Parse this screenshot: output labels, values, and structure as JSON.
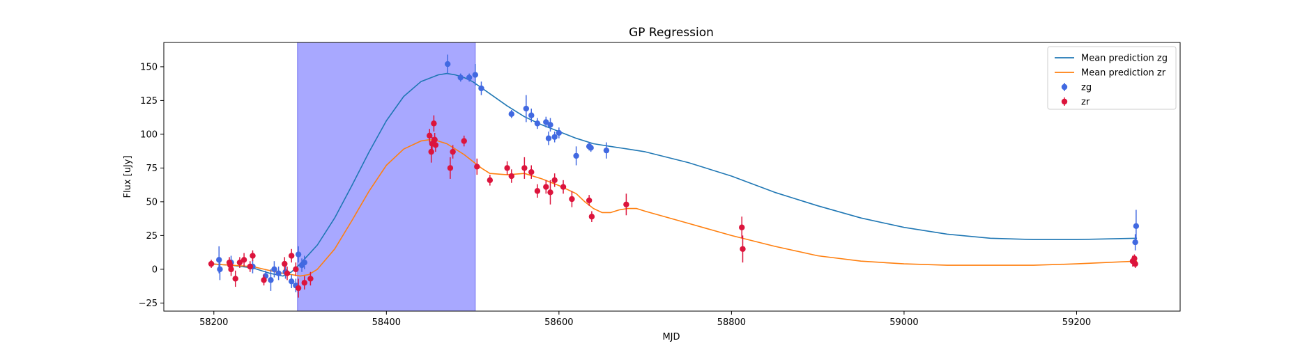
{
  "chart_data": {
    "type": "scatter",
    "title": "GP Regression",
    "xlabel": "MJD",
    "ylabel": "Flux [uJy]",
    "xlim": [
      58142,
      59320
    ],
    "ylim": [
      -31,
      168
    ],
    "xticks": [
      58200,
      58400,
      58600,
      58800,
      59000,
      59200
    ],
    "yticks": [
      -25,
      0,
      25,
      50,
      75,
      100,
      125,
      150
    ],
    "shaded_region": {
      "x": [
        58297,
        58503
      ],
      "color": "#a8a8ff"
    },
    "legend": {
      "position": "top-right"
    },
    "lines": [
      {
        "name": "Mean prediction zg",
        "color": "#1f77b4",
        "x": [
          58195,
          58220,
          58245,
          58265,
          58280,
          58290,
          58300,
          58320,
          58340,
          58360,
          58380,
          58400,
          58420,
          58440,
          58460,
          58470,
          58480,
          58490,
          58500,
          58520,
          58540,
          58560,
          58580,
          58600,
          58620,
          58640,
          58660,
          58680,
          58700,
          58750,
          58800,
          58850,
          58900,
          58950,
          59000,
          59050,
          59100,
          59150,
          59200,
          59270
        ],
        "y": [
          4,
          3,
          1,
          -3,
          -5,
          -2,
          4,
          18,
          38,
          62,
          87,
          110,
          128,
          139,
          144,
          145,
          144,
          142,
          139,
          130,
          121,
          113,
          107,
          102,
          97,
          93,
          91,
          89,
          87,
          79,
          69,
          57,
          47,
          38,
          31,
          26,
          23,
          22,
          22,
          23
        ]
      },
      {
        "name": "Mean prediction zr",
        "color": "#ff7f0e",
        "x": [
          58195,
          58220,
          58245,
          58265,
          58280,
          58290,
          58300,
          58310,
          58320,
          58340,
          58360,
          58380,
          58400,
          58420,
          58440,
          58450,
          58460,
          58470,
          58480,
          58490,
          58500,
          58510,
          58520,
          58540,
          58560,
          58580,
          58600,
          58620,
          58630,
          58640,
          58650,
          58660,
          58670,
          58680,
          58690,
          58700,
          58750,
          58800,
          58850,
          58900,
          58950,
          59000,
          59050,
          59100,
          59150,
          59200,
          59270
        ],
        "y": [
          4,
          3,
          2,
          -1,
          -3,
          -4,
          -5,
          -4,
          0,
          15,
          36,
          58,
          77,
          89,
          95,
          96,
          95,
          93,
          89,
          85,
          80,
          75,
          71,
          70,
          71,
          67,
          62,
          56,
          50,
          45,
          42,
          42,
          44,
          45,
          45,
          43,
          34,
          25,
          17,
          10,
          6,
          4,
          3,
          3,
          3,
          4,
          6
        ]
      }
    ],
    "series": [
      {
        "name": "zg",
        "color": "#4169e1",
        "points": [
          [
            58206,
            7,
            10
          ],
          [
            58207,
            0,
            8
          ],
          [
            58220,
            5,
            5
          ],
          [
            58245,
            2,
            5
          ],
          [
            58260,
            -5,
            4
          ],
          [
            58266,
            -8,
            8
          ],
          [
            58270,
            0,
            6
          ],
          [
            58275,
            -3,
            5
          ],
          [
            58283,
            -2,
            5
          ],
          [
            58290,
            -9,
            5
          ],
          [
            58295,
            -12,
            5
          ],
          [
            58298,
            11,
            6
          ],
          [
            58302,
            3,
            5
          ],
          [
            58305,
            5,
            5
          ],
          [
            58471,
            152,
            7
          ],
          [
            58486,
            142,
            3
          ],
          [
            58496,
            142,
            3
          ],
          [
            58503,
            144,
            8
          ],
          [
            58510,
            134,
            5
          ],
          [
            58545,
            115,
            3
          ],
          [
            58562,
            119,
            10
          ],
          [
            58568,
            114,
            5
          ],
          [
            58575,
            108,
            4
          ],
          [
            58585,
            109,
            4
          ],
          [
            58588,
            97,
            5
          ],
          [
            58590,
            107,
            5
          ],
          [
            58595,
            98,
            4
          ],
          [
            58600,
            101,
            4
          ],
          [
            58620,
            84,
            7
          ],
          [
            58635,
            91,
            3
          ],
          [
            58637,
            90,
            3
          ],
          [
            58655,
            88,
            6
          ],
          [
            59268,
            20,
            6
          ],
          [
            59269,
            32,
            12
          ]
        ]
      },
      {
        "name": "zr",
        "color": "#dc143c",
        "points": [
          [
            58197,
            4,
            3
          ],
          [
            58218,
            5,
            4
          ],
          [
            58219,
            3,
            4
          ],
          [
            58220,
            0,
            5
          ],
          [
            58225,
            -7,
            6
          ],
          [
            58230,
            5,
            4
          ],
          [
            58235,
            7,
            5
          ],
          [
            58242,
            2,
            4
          ],
          [
            58245,
            10,
            4
          ],
          [
            58258,
            -8,
            4
          ],
          [
            58282,
            4,
            5
          ],
          [
            58285,
            -3,
            5
          ],
          [
            58290,
            10,
            5
          ],
          [
            58295,
            0,
            5
          ],
          [
            58298,
            -14,
            7
          ],
          [
            58305,
            -10,
            5
          ],
          [
            58312,
            -7,
            5
          ],
          [
            58450,
            99,
            5
          ],
          [
            58452,
            87,
            8
          ],
          [
            58453,
            93,
            5
          ],
          [
            58455,
            108,
            6
          ],
          [
            58456,
            96,
            5
          ],
          [
            58457,
            92,
            5
          ],
          [
            58474,
            75,
            8
          ],
          [
            58477,
            87,
            5
          ],
          [
            58490,
            95,
            4
          ],
          [
            58505,
            76,
            6
          ],
          [
            58520,
            66,
            4
          ],
          [
            58540,
            75,
            5
          ],
          [
            58545,
            69,
            5
          ],
          [
            58560,
            75,
            8
          ],
          [
            58568,
            72,
            5
          ],
          [
            58575,
            58,
            5
          ],
          [
            58585,
            61,
            5
          ],
          [
            58590,
            57,
            9
          ],
          [
            58595,
            66,
            5
          ],
          [
            58605,
            61,
            5
          ],
          [
            58615,
            52,
            6
          ],
          [
            58635,
            51,
            4
          ],
          [
            58638,
            39,
            4
          ],
          [
            58678,
            48,
            8
          ],
          [
            58812,
            31,
            8
          ],
          [
            58813,
            15,
            10
          ],
          [
            59265,
            6,
            4
          ],
          [
            59267,
            8,
            3
          ],
          [
            59268,
            4,
            3
          ]
        ]
      }
    ]
  }
}
